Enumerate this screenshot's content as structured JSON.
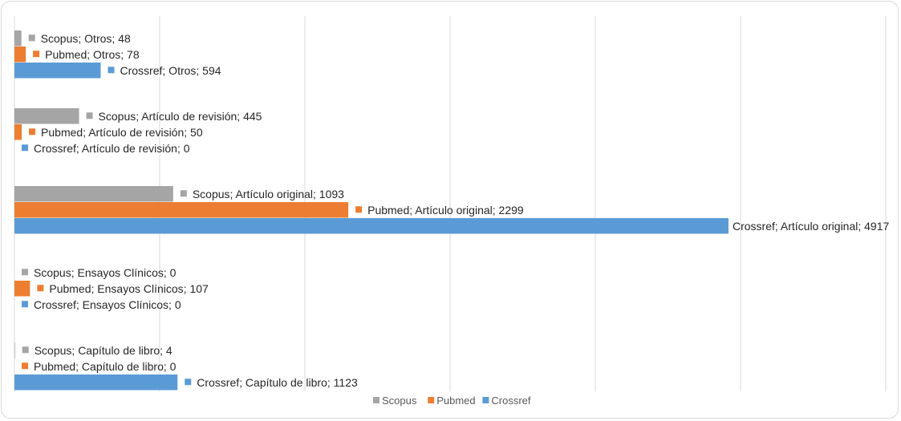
{
  "chart_data": {
    "type": "bar",
    "orientation": "horizontal",
    "categories": [
      "Otros",
      "Artículo de revisión",
      "Artículo original",
      "Ensayos Clínicos",
      "Capítulo de libro"
    ],
    "series": [
      {
        "name": "Scopus",
        "color": "#a5a5a5",
        "values": [
          48,
          445,
          1093,
          0,
          4
        ]
      },
      {
        "name": "Pubmed",
        "color": "#ed7d31",
        "values": [
          78,
          50,
          2299,
          107,
          0
        ]
      },
      {
        "name": "Crossref",
        "color": "#5b9bd5",
        "values": [
          594,
          0,
          4917,
          0,
          1123
        ]
      }
    ],
    "data_labels": [
      [
        "Scopus; Otros; 48",
        "Pubmed; Otros; 78",
        "Crossref; Otros; 594"
      ],
      [
        "Scopus; Artículo de revisión; 445",
        "Pubmed; Artículo de revisión; 50",
        "Crossref; Artículo de revisión; 0"
      ],
      [
        "Scopus; Artículo original; 1093",
        "Pubmed; Artículo original; 2299",
        "Crossref; Artículo original; 4917"
      ],
      [
        "Scopus; Ensayos Clínicos; 0",
        "Pubmed; Ensayos Clínicos; 107",
        "Crossref; Ensayos Clínicos; 0"
      ],
      [
        "Scopus; Capítulo de libro; 4",
        "Pubmed; Capítulo de libro; 0",
        "Crossref; Capítulo de libro; 1123"
      ]
    ],
    "xlim": [
      0,
      6000
    ],
    "x_gridlines": [
      0,
      1000,
      2000,
      3000,
      4000,
      5000,
      6000
    ],
    "grid": true,
    "legend": {
      "position": "bottom",
      "entries": [
        "Scopus",
        "Pubmed",
        "Crossref"
      ]
    },
    "title": "",
    "xlabel": "",
    "ylabel": ""
  }
}
